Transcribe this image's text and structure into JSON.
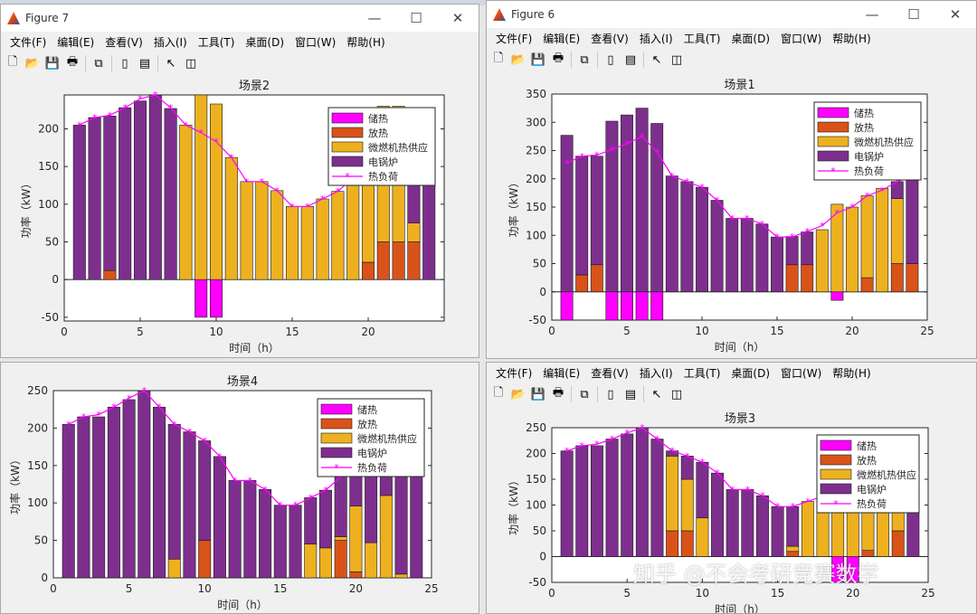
{
  "menu_labels": [
    "文件(F)",
    "编辑(E)",
    "查看(V)",
    "插入(I)",
    "工具(T)",
    "桌面(D)",
    "窗口(W)",
    "帮助(H)"
  ],
  "watermark": "知乎 @不会考研竞赛数学",
  "colors": {
    "store": "#ff00ff",
    "release": "#d95319",
    "micro": "#edb120",
    "boiler": "#7e2f8e",
    "load": "#ff00ff"
  },
  "windows": {
    "fig7": {
      "title": "Figure 7"
    },
    "fig6": {
      "title": "Figure 6"
    },
    "fig4": {
      "title": ""
    },
    "fig3": {
      "title": ""
    }
  },
  "chart_data": [
    {
      "id": "fig7",
      "type": "bar",
      "title": "场景2",
      "xlabel": "时间（h）",
      "ylabel": "功率（kW）",
      "xlim": [
        0,
        25
      ],
      "ylim": [
        -55,
        245
      ],
      "xticks": [
        0,
        5,
        10,
        15,
        20
      ],
      "yticks": [
        -50,
        0,
        50,
        100,
        150,
        200
      ],
      "legend": [
        "储热",
        "放热",
        "微燃机热供应",
        "电锅炉",
        "热负荷"
      ],
      "x": [
        1,
        2,
        3,
        4,
        5,
        6,
        7,
        8,
        9,
        10,
        11,
        12,
        13,
        14,
        15,
        16,
        17,
        18,
        19,
        20,
        21,
        22,
        23,
        24
      ],
      "series": [
        {
          "name": "储热",
          "values": [
            0,
            0,
            0,
            0,
            0,
            0,
            0,
            0,
            -50,
            -50,
            0,
            0,
            0,
            0,
            0,
            0,
            0,
            0,
            0,
            0,
            0,
            0,
            0,
            0
          ]
        },
        {
          "name": "放热",
          "values": [
            0,
            0,
            12,
            0,
            0,
            0,
            0,
            0,
            0,
            0,
            0,
            0,
            0,
            0,
            0,
            0,
            0,
            0,
            0,
            23,
            50,
            50,
            50,
            0
          ]
        },
        {
          "name": "微燃机热供应",
          "values": [
            0,
            0,
            0,
            0,
            0,
            0,
            0,
            205,
            245,
            233,
            162,
            130,
            130,
            118,
            97,
            97,
            107,
            117,
            130,
            160,
            180,
            180,
            25,
            0
          ]
        },
        {
          "name": "电锅炉",
          "values": [
            205,
            215,
            205,
            228,
            237,
            245,
            227,
            0,
            0,
            0,
            0,
            0,
            0,
            0,
            0,
            0,
            0,
            0,
            0,
            0,
            0,
            0,
            130,
            205
          ]
        }
      ],
      "load": [
        205,
        215,
        218,
        228,
        240,
        245,
        228,
        205,
        195,
        183,
        162,
        130,
        130,
        118,
        97,
        97,
        107,
        117,
        135,
        160,
        183,
        180,
        180,
        205
      ]
    },
    {
      "id": "fig6",
      "type": "bar",
      "title": "场景1",
      "xlabel": "时间（h）",
      "ylabel": "功率（kW）",
      "xlim": [
        0,
        25
      ],
      "ylim": [
        -50,
        350
      ],
      "xticks": [
        0,
        5,
        10,
        15,
        20,
        25
      ],
      "yticks": [
        -50,
        0,
        50,
        100,
        150,
        200,
        250,
        300,
        350
      ],
      "legend": [
        "储热",
        "放热",
        "微燃机热供应",
        "电锅炉",
        "热负荷"
      ],
      "x": [
        1,
        2,
        3,
        4,
        5,
        6,
        7,
        8,
        9,
        10,
        11,
        12,
        13,
        14,
        15,
        16,
        17,
        18,
        19,
        20,
        21,
        22,
        23,
        24
      ],
      "series": [
        {
          "name": "储热",
          "values": [
            -50,
            0,
            0,
            -50,
            -50,
            -50,
            -50,
            0,
            0,
            0,
            0,
            0,
            0,
            0,
            0,
            0,
            0,
            0,
            -15,
            0,
            0,
            0,
            0,
            0
          ]
        },
        {
          "name": "放热",
          "values": [
            0,
            30,
            48,
            0,
            0,
            0,
            0,
            0,
            0,
            0,
            0,
            0,
            0,
            0,
            0,
            48,
            48,
            0,
            0,
            0,
            25,
            0,
            50,
            50
          ]
        },
        {
          "name": "微燃机热供应",
          "values": [
            0,
            0,
            0,
            0,
            0,
            0,
            0,
            0,
            0,
            0,
            0,
            0,
            0,
            0,
            0,
            0,
            0,
            110,
            155,
            150,
            145,
            183,
            115,
            0
          ]
        },
        {
          "name": "电锅炉",
          "values": [
            277,
            210,
            192,
            302,
            313,
            325,
            298,
            205,
            195,
            185,
            162,
            130,
            130,
            120,
            97,
            50,
            58,
            0,
            0,
            0,
            0,
            0,
            30,
            150
          ]
        }
      ],
      "load": [
        228,
        240,
        242,
        252,
        262,
        275,
        248,
        205,
        195,
        185,
        162,
        130,
        130,
        120,
        97,
        97,
        107,
        117,
        140,
        150,
        170,
        180,
        195,
        205
      ]
    },
    {
      "id": "fig4",
      "type": "bar",
      "title": "场景4",
      "xlabel": "时间（h）",
      "ylabel": "功率（kW）",
      "xlim": [
        0,
        25
      ],
      "ylim": [
        0,
        250
      ],
      "xticks": [
        0,
        5,
        10,
        15,
        20,
        25
      ],
      "yticks": [
        0,
        50,
        100,
        150,
        200,
        250
      ],
      "legend": [
        "储热",
        "放热",
        "微燃机热供应",
        "电锅炉",
        "热负荷"
      ],
      "x": [
        1,
        2,
        3,
        4,
        5,
        6,
        7,
        8,
        9,
        10,
        11,
        12,
        13,
        14,
        15,
        16,
        17,
        18,
        19,
        20,
        21,
        22,
        23,
        24
      ],
      "series": [
        {
          "name": "储热",
          "values": [
            0,
            0,
            0,
            0,
            0,
            0,
            0,
            0,
            0,
            0,
            0,
            0,
            0,
            0,
            0,
            0,
            0,
            0,
            0,
            0,
            0,
            0,
            0,
            0
          ]
        },
        {
          "name": "放热",
          "values": [
            0,
            0,
            0,
            0,
            0,
            0,
            0,
            0,
            0,
            50,
            0,
            0,
            0,
            0,
            0,
            0,
            0,
            0,
            50,
            8,
            0,
            0,
            0,
            0
          ]
        },
        {
          "name": "微燃机热供应",
          "values": [
            0,
            0,
            0,
            0,
            0,
            0,
            0,
            25,
            0,
            0,
            0,
            0,
            0,
            0,
            0,
            0,
            45,
            40,
            5,
            88,
            47,
            110,
            5,
            0
          ]
        },
        {
          "name": "电锅炉",
          "values": [
            205,
            215,
            215,
            228,
            238,
            250,
            228,
            180,
            195,
            133,
            162,
            130,
            130,
            118,
            97,
            97,
            62,
            77,
            80,
            84,
            138,
            70,
            195,
            205
          ]
        }
      ],
      "load": [
        205,
        215,
        218,
        228,
        240,
        250,
        228,
        205,
        195,
        183,
        162,
        130,
        130,
        118,
        97,
        97,
        107,
        117,
        135,
        160,
        183,
        180,
        190,
        205
      ]
    },
    {
      "id": "fig3",
      "type": "bar",
      "title": "场景3",
      "xlabel": "时间（h）",
      "ylabel": "功率（kW）",
      "xlim": [
        0,
        25
      ],
      "ylim": [
        -50,
        250
      ],
      "xticks": [
        0,
        5,
        10,
        15,
        20,
        25
      ],
      "yticks": [
        -50,
        0,
        50,
        100,
        150,
        200,
        250
      ],
      "legend": [
        "储热",
        "放热",
        "微燃机热供应",
        "电锅炉",
        "热负荷"
      ],
      "x": [
        1,
        2,
        3,
        4,
        5,
        6,
        7,
        8,
        9,
        10,
        11,
        12,
        13,
        14,
        15,
        16,
        17,
        18,
        19,
        20,
        21,
        22,
        23,
        24
      ],
      "series": [
        {
          "name": "储热",
          "values": [
            0,
            0,
            0,
            0,
            0,
            0,
            0,
            0,
            0,
            0,
            0,
            0,
            0,
            0,
            0,
            0,
            0,
            0,
            -50,
            -50,
            0,
            0,
            0,
            0
          ]
        },
        {
          "name": "放热",
          "values": [
            0,
            0,
            0,
            0,
            0,
            0,
            0,
            50,
            50,
            0,
            0,
            0,
            0,
            0,
            0,
            10,
            0,
            0,
            0,
            0,
            12,
            0,
            50,
            0
          ]
        },
        {
          "name": "微燃机热供应",
          "values": [
            0,
            0,
            0,
            0,
            0,
            0,
            0,
            145,
            100,
            75,
            0,
            0,
            0,
            0,
            0,
            10,
            107,
            117,
            130,
            150,
            170,
            180,
            50,
            0
          ]
        },
        {
          "name": "电锅炉",
          "values": [
            205,
            215,
            215,
            228,
            238,
            250,
            228,
            10,
            45,
            108,
            162,
            130,
            130,
            118,
            97,
            77,
            0,
            0,
            0,
            0,
            0,
            0,
            70,
            205
          ]
        }
      ],
      "load": [
        205,
        215,
        218,
        228,
        240,
        250,
        228,
        205,
        195,
        183,
        162,
        130,
        130,
        118,
        97,
        97,
        107,
        117,
        135,
        160,
        183,
        180,
        190,
        205
      ]
    }
  ]
}
